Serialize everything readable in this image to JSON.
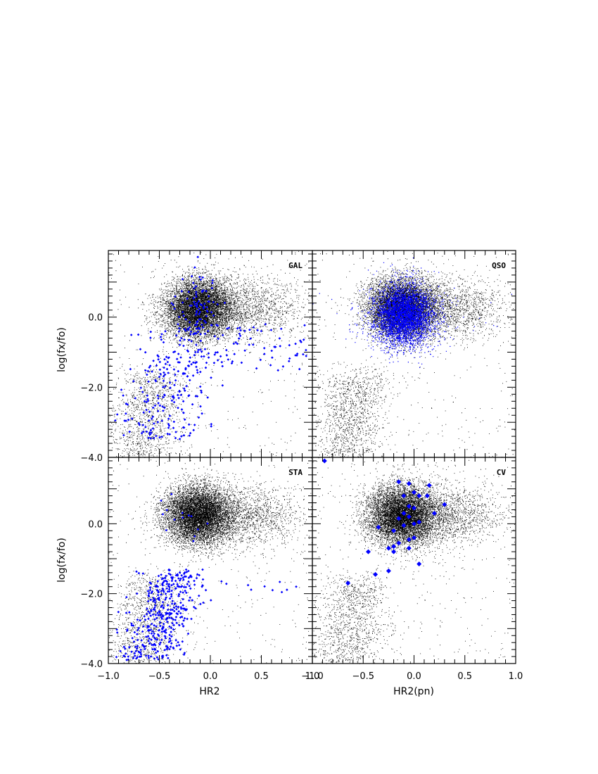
{
  "chart_data": [
    {
      "type": "scatter",
      "panel_label": "GAL",
      "xlim": [
        -1.0,
        1.0
      ],
      "ylim": [
        -4.0,
        1.9
      ],
      "xticks": [
        -1.0,
        -0.5,
        0.0,
        0.5,
        1.0
      ],
      "yticks": [
        -4.0,
        -2.0,
        0.0
      ],
      "xlabel": "HR2",
      "ylabel": "log(fx/fo)",
      "series": [
        {
          "color": "#000000",
          "marker": "dot",
          "values_sample": [
            [
              -0.15,
              0.3
            ],
            [
              -0.1,
              0.1
            ],
            [
              0.2,
              0.4
            ],
            [
              0.6,
              0.2
            ],
            [
              -0.5,
              -2.5
            ]
          ]
        },
        {
          "color": "#0000ff",
          "marker": "small-diamond",
          "values_sample": [
            [
              -0.1,
              0.2
            ],
            [
              -0.3,
              -1.0
            ],
            [
              -0.5,
              -2.5
            ],
            [
              0.5,
              -0.8
            ],
            [
              0.1,
              -3.6
            ]
          ]
        }
      ]
    },
    {
      "type": "scatter",
      "panel_label": "QSO",
      "xlim": [
        -1.0,
        1.0
      ],
      "ylim": [
        -4.0,
        1.9
      ],
      "xticks": [
        -1.0,
        -0.5,
        0.0,
        0.5,
        1.0
      ],
      "yticks": [
        -4.0,
        -2.0,
        0.0
      ],
      "xlabel": "HR2(pn)",
      "ylabel": "",
      "series": [
        {
          "color": "#000000",
          "marker": "dot",
          "values_sample": [
            [
              -0.1,
              0.3
            ],
            [
              0.3,
              0.1
            ],
            [
              -0.5,
              -2.5
            ]
          ]
        },
        {
          "color": "#0000ff",
          "marker": "dot",
          "values_sample": [
            [
              -0.1,
              0.1
            ],
            [
              0.0,
              -0.2
            ],
            [
              -0.2,
              0.3
            ]
          ]
        }
      ]
    },
    {
      "type": "scatter",
      "panel_label": "STA",
      "xlim": [
        -1.0,
        1.0
      ],
      "ylim": [
        -4.0,
        1.9
      ],
      "xticks": [
        -1.0,
        -0.5,
        0.0,
        0.5,
        1.0
      ],
      "yticks": [
        -4.0,
        -2.0,
        0.0
      ],
      "xlabel": "HR2",
      "ylabel": "log(fx/fo)",
      "series": [
        {
          "color": "#000000",
          "marker": "dot",
          "values_sample": [
            [
              -0.15,
              0.3
            ],
            [
              0.2,
              0.2
            ],
            [
              -0.5,
              -2.5
            ]
          ]
        },
        {
          "color": "#0000ff",
          "marker": "small-diamond",
          "values_sample": [
            [
              -0.5,
              -2.3
            ],
            [
              -0.7,
              -3.0
            ],
            [
              -0.3,
              -1.5
            ],
            [
              0.3,
              -1.7
            ],
            [
              0.8,
              -1.9
            ]
          ]
        }
      ]
    },
    {
      "type": "scatter",
      "panel_label": "CV",
      "xlim": [
        -1.0,
        1.0
      ],
      "ylim": [
        -4.0,
        1.9
      ],
      "xticks": [
        -1.0,
        -0.5,
        0.0,
        0.5,
        1.0
      ],
      "yticks": [
        -4.0,
        -2.0,
        0.0
      ],
      "xlabel": "HR2(pn)",
      "ylabel": "",
      "series": [
        {
          "color": "#000000",
          "marker": "dot",
          "values_sample": [
            [
              -0.1,
              0.3
            ],
            [
              0.3,
              0.2
            ],
            [
              -0.5,
              -2.5
            ]
          ]
        },
        {
          "color": "#0000ff",
          "marker": "large-diamond",
          "values": [
            [
              -0.88,
              1.8
            ],
            [
              -0.15,
              1.2
            ],
            [
              -0.05,
              1.15
            ],
            [
              0.15,
              1.1
            ],
            [
              0.05,
              0.8
            ],
            [
              -0.1,
              0.8
            ],
            [
              0.0,
              0.9
            ],
            [
              0.13,
              0.8
            ],
            [
              -0.05,
              0.5
            ],
            [
              0.3,
              0.55
            ],
            [
              0.0,
              0.45
            ],
            [
              0.2,
              0.3
            ],
            [
              -0.1,
              0.3
            ],
            [
              -0.15,
              0.15
            ],
            [
              -0.05,
              0.2
            ],
            [
              0.05,
              0.05
            ],
            [
              -0.35,
              -0.1
            ],
            [
              -0.1,
              -0.05
            ],
            [
              0.0,
              0.0
            ],
            [
              -0.2,
              -0.2
            ],
            [
              0.0,
              -0.4
            ],
            [
              -0.05,
              -0.45
            ],
            [
              -0.15,
              -0.55
            ],
            [
              -0.2,
              -0.65
            ],
            [
              -0.25,
              -0.7
            ],
            [
              -0.05,
              -0.7
            ],
            [
              -0.2,
              -0.8
            ],
            [
              -0.45,
              -0.8
            ],
            [
              0.05,
              -1.15
            ],
            [
              -0.25,
              -1.35
            ],
            [
              -0.38,
              -1.45
            ],
            [
              -0.65,
              -1.7
            ]
          ]
        }
      ]
    }
  ]
}
